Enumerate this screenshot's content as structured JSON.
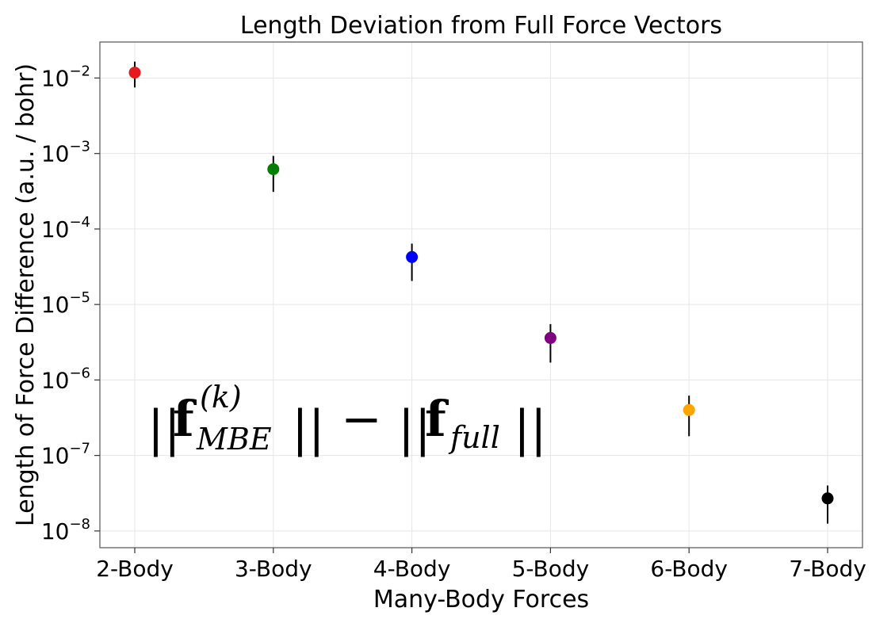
{
  "chart_data": {
    "type": "scatter",
    "title": "Length Deviation from Full Force Vectors",
    "xlabel": "Many-Body Forces",
    "ylabel": "Length of Force Difference (a.u. / bohr)",
    "categories": [
      "2-Body",
      "3-Body",
      "4-Body",
      "5-Body",
      "6-Body",
      "7-Body"
    ],
    "values": [
      0.0118,
      0.00062,
      4.25e-05,
      3.6e-06,
      4e-07,
      2.7e-08
    ],
    "error_low": [
      0.0075,
      0.00031,
      2.05e-05,
      1.7e-06,
      1.8e-07,
      1.25e-08
    ],
    "error_high": [
      0.0165,
      0.00093,
      6.4e-05,
      5.5e-06,
      6.2e-07,
      4e-08
    ],
    "colors": [
      "#e41a1c",
      "#008000",
      "#0000ff",
      "#800080",
      "#ffa500",
      "#000000"
    ],
    "y_scale": "log",
    "ylim": [
      6e-09,
      0.03
    ],
    "y_ticks": [
      {
        "base": "10",
        "exp": "−2",
        "value": 0.01
      },
      {
        "base": "10",
        "exp": "−3",
        "value": 0.001
      },
      {
        "base": "10",
        "exp": "−4",
        "value": 0.0001
      },
      {
        "base": "10",
        "exp": "−5",
        "value": 1e-05
      },
      {
        "base": "10",
        "exp": "−6",
        "value": 1e-06
      },
      {
        "base": "10",
        "exp": "−7",
        "value": 1e-07
      },
      {
        "base": "10",
        "exp": "−8",
        "value": 1e-08
      }
    ],
    "grid": true,
    "annotation": {
      "bars_open": "||",
      "f": "f",
      "superscript": "(k)",
      "subscript_mbe": "MBE",
      "minus": "−",
      "subscript_full": "full",
      "bars_close": "||"
    }
  }
}
